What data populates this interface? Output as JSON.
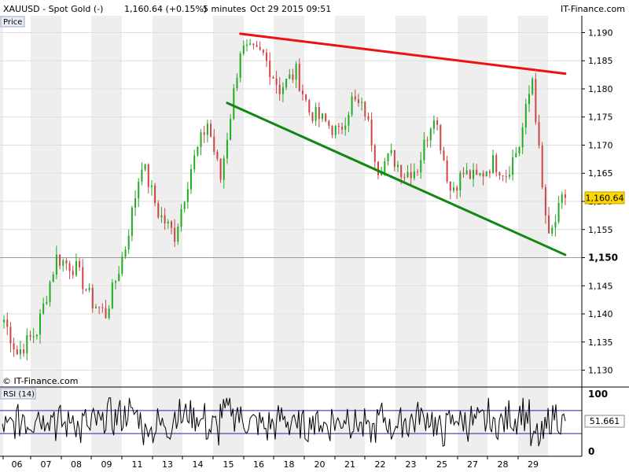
{
  "header": {
    "symbol": "XAUUSD - Spot Gold (-)",
    "last": "1,160.64 (+0.15%)",
    "interval": "5 minutes",
    "datetime": "Oct 29 2015 09:51",
    "brand": "IT-Finance.com"
  },
  "price_panel": {
    "label": "Price",
    "watermark": "© IT-Finance.com",
    "current_price_label": "1,160.64"
  },
  "rsi_panel": {
    "label": "RSI (14)",
    "value_label": "51.661"
  },
  "colors": {
    "up_candle": "#22aa22",
    "down_candle": "#cc4444",
    "resistance_line": "#ee1111",
    "support_line": "#118811",
    "rsi_line": "#000000",
    "rsi_bands": "#2222aa",
    "price_tag": "#ffd700"
  },
  "chart_data": [
    {
      "type": "candlestick",
      "instrument": "XAUUSD",
      "ylim": [
        1127,
        1193
      ],
      "y_ticks": [
        1130,
        1135,
        1140,
        1145,
        1150,
        1155,
        1160,
        1165,
        1170,
        1175,
        1180,
        1185,
        1190
      ],
      "y_tick_labels": [
        "1,130",
        "1,135",
        "1,140",
        "1,145",
        "1,150",
        "1,155",
        "1,160",
        "1,165",
        "1,170",
        "1,175",
        "1,180",
        "1,185",
        "1,190"
      ],
      "highlight_tick": 1150,
      "x_labels": [
        "06",
        "07",
        "08",
        "09",
        "11",
        "13",
        "14",
        "15",
        "16",
        "18",
        "20",
        "21",
        "22",
        "23",
        "25",
        "27",
        "28",
        "29"
      ],
      "last_close": 1160.64,
      "waypoints": [
        [
          0,
          1139
        ],
        [
          4,
          1133
        ],
        [
          10,
          1137
        ],
        [
          16,
          1150
        ],
        [
          22,
          1148
        ],
        [
          27,
          1142
        ],
        [
          31,
          1140
        ],
        [
          37,
          1152
        ],
        [
          42,
          1167
        ],
        [
          47,
          1158
        ],
        [
          52,
          1154
        ],
        [
          57,
          1166
        ],
        [
          62,
          1174
        ],
        [
          66,
          1164
        ],
        [
          72,
          1187
        ],
        [
          79,
          1186
        ],
        [
          84,
          1180
        ],
        [
          89,
          1183
        ],
        [
          93,
          1176
        ],
        [
          98,
          1174
        ],
        [
          102,
          1172
        ],
        [
          106,
          1178
        ],
        [
          110,
          1176
        ],
        [
          114,
          1166
        ],
        [
          118,
          1168
        ],
        [
          122,
          1165
        ],
        [
          126,
          1166
        ],
        [
          131,
          1176
        ],
        [
          136,
          1162
        ],
        [
          140,
          1165
        ],
        [
          144,
          1164
        ],
        [
          149,
          1167
        ],
        [
          153,
          1165
        ],
        [
          157,
          1170
        ],
        [
          161,
          1182
        ],
        [
          164,
          1162
        ],
        [
          166,
          1153
        ],
        [
          170,
          1160
        ]
      ],
      "trendlines": [
        {
          "name": "resistance",
          "color": "#ee1111",
          "from": [
            72,
            1189.8
          ],
          "to": [
            171,
            1182.7
          ]
        },
        {
          "name": "support",
          "color": "#118811",
          "from": [
            68,
            1177.5
          ],
          "to": [
            171,
            1150.5
          ]
        }
      ]
    },
    {
      "type": "line",
      "name": "RSI (14)",
      "ylim": [
        0,
        100
      ],
      "y_tick_labels": [
        "100",
        "0"
      ],
      "bands": [
        70,
        30
      ],
      "last_value": 51.661
    }
  ]
}
